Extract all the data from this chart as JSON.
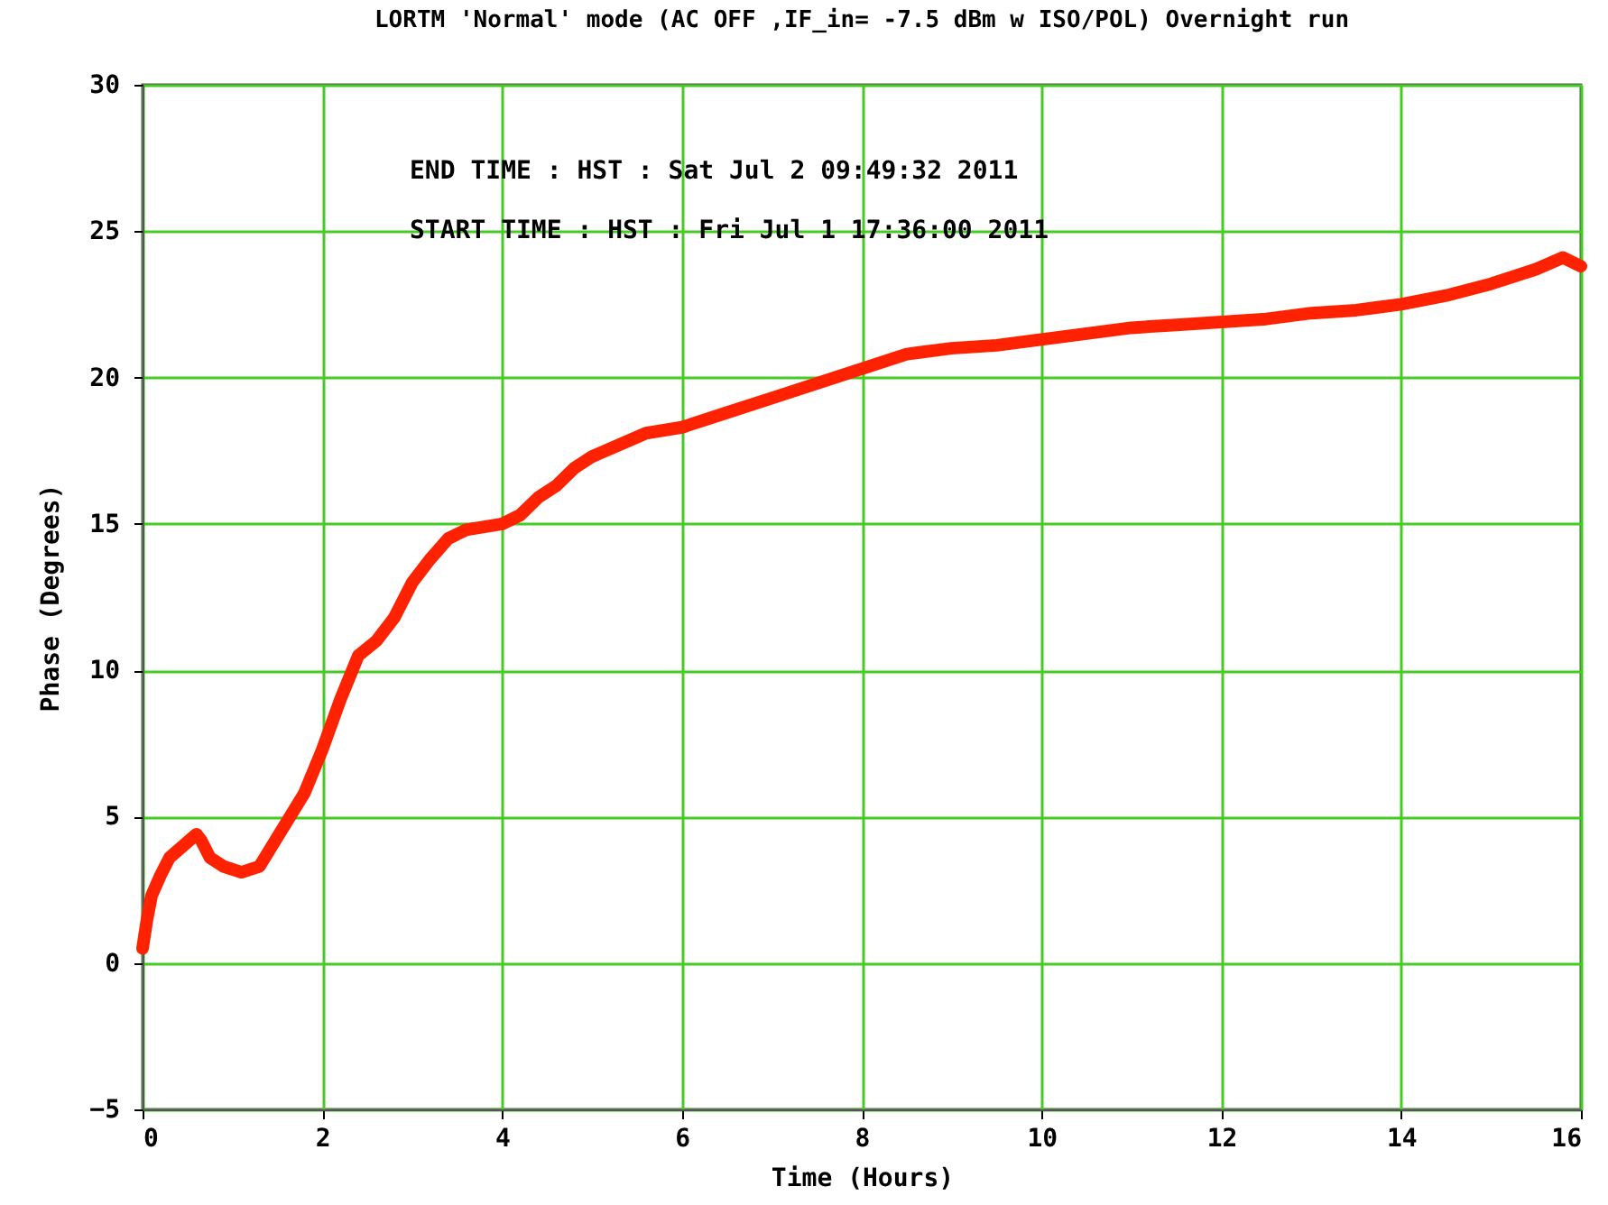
{
  "chart_data": {
    "type": "line",
    "title": "LORTM 'Normal' mode (AC OFF ,IF_in= -7.5 dBm w ISO/POL) Overnight run",
    "xlabel": "Time (Hours)",
    "ylabel": "Phase (Degrees)",
    "annotations": [
      "END TIME : HST : Sat Jul 2  09:49:32 2011",
      "START TIME : HST : Fri Jul 1 17:36:00 2011"
    ],
    "xlim": [
      0,
      16
    ],
    "xticks": [
      0,
      2,
      4,
      6,
      8,
      10,
      12,
      14,
      16
    ],
    "ylim": [
      -5,
      30
    ],
    "yticks": [
      -5,
      0,
      5,
      10,
      15,
      20,
      25,
      30
    ],
    "grid": true,
    "line_style": "solid",
    "series": [
      {
        "color": "#ff2200",
        "x": [
          0,
          0.05,
          0.1,
          0.2,
          0.3,
          0.45,
          0.6,
          0.65,
          0.75,
          0.9,
          1.1,
          1.3,
          1.4,
          1.6,
          1.8,
          2.0,
          2.2,
          2.4,
          2.6,
          2.8,
          3.0,
          3.2,
          3.4,
          3.6,
          3.8,
          4.0,
          4.2,
          4.4,
          4.6,
          4.8,
          5.0,
          5.3,
          5.6,
          6.0,
          6.5,
          7.0,
          7.5,
          8.0,
          8.5,
          9.0,
          9.5,
          10.0,
          10.5,
          11.0,
          11.5,
          12.0,
          12.5,
          13.0,
          13.5,
          14.0,
          14.5,
          15.0,
          15.5,
          15.8,
          16.0
        ],
        "values": [
          0.5,
          1.5,
          2.3,
          3.0,
          3.6,
          4.0,
          4.4,
          4.2,
          3.6,
          3.3,
          3.1,
          3.3,
          3.8,
          4.8,
          5.8,
          7.3,
          9.0,
          10.5,
          11.0,
          11.8,
          13.0,
          13.8,
          14.5,
          14.8,
          14.9,
          15.0,
          15.3,
          15.9,
          16.3,
          16.9,
          17.3,
          17.7,
          18.1,
          18.3,
          18.8,
          19.3,
          19.8,
          20.3,
          20.8,
          21.0,
          21.1,
          21.3,
          21.5,
          21.7,
          21.8,
          21.9,
          22.0,
          22.2,
          22.3,
          22.5,
          22.8,
          23.2,
          23.7,
          24.1,
          23.8
        ]
      }
    ]
  }
}
